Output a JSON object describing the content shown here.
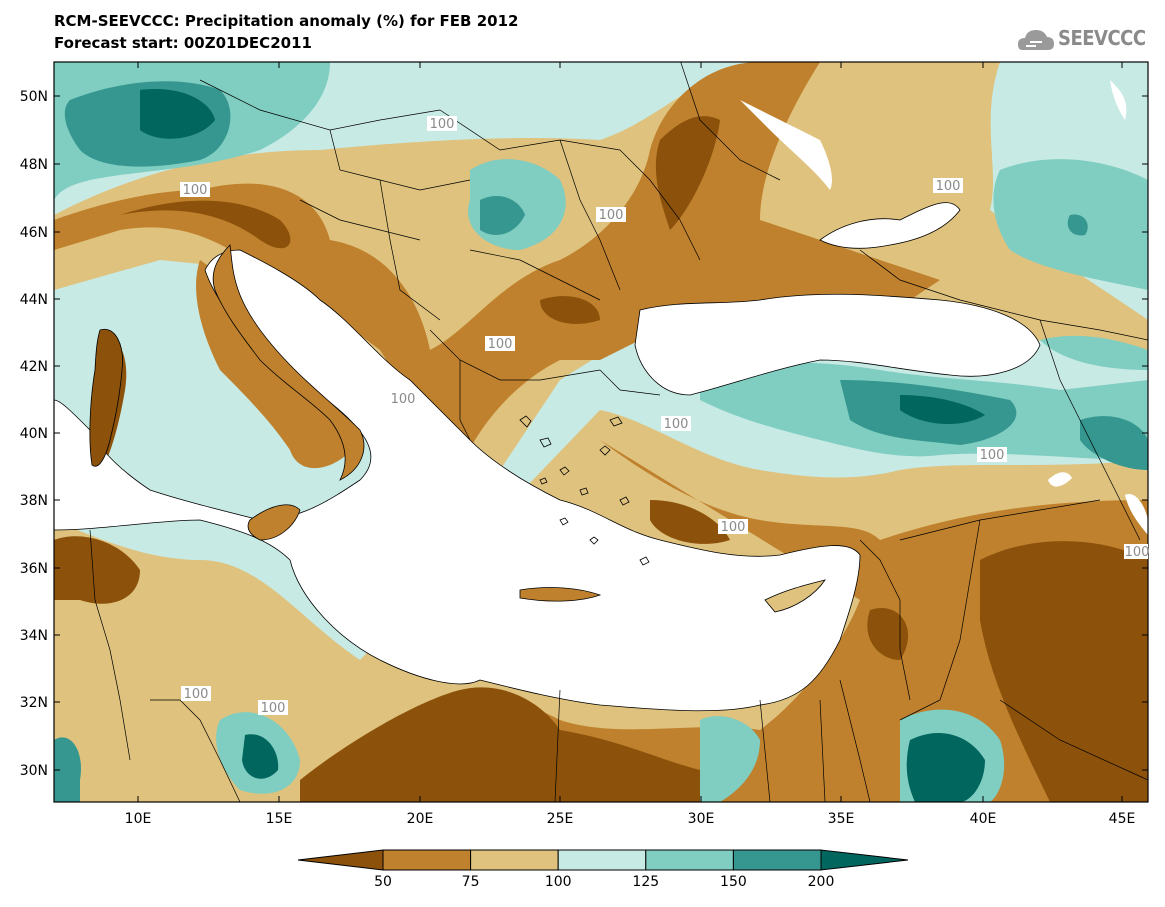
{
  "title": {
    "line1": "RCM-SEEVCCC: Precipitation anomaly (%) for FEB 2012",
    "line2": "Forecast start: 00Z01DEC2011"
  },
  "logo": {
    "text": "SEEVCCC",
    "icon": "cloud-logo-icon"
  },
  "map": {
    "lon_labels": [
      "10E",
      "15E",
      "20E",
      "25E",
      "30E",
      "35E",
      "40E",
      "45E"
    ],
    "lat_labels": [
      "50N",
      "48N",
      "46N",
      "44N",
      "42N",
      "40N",
      "38N",
      "36N",
      "34N",
      "32N",
      "30N"
    ],
    "contour_labels": [
      "100",
      "100",
      "100",
      "100",
      "100",
      "100",
      "100",
      "100",
      "100",
      "100",
      "100",
      "100"
    ]
  },
  "colorbar": {
    "labels": [
      "50",
      "75",
      "100",
      "125",
      "150",
      "200"
    ],
    "colors": {
      "lt50": "#8c510a",
      "50-75": "#bf812d",
      "75-100": "#dfc27d",
      "100-125": "#c7eae5",
      "125-150": "#80cdc1",
      "150-200": "#35978f",
      "gt200": "#01665e"
    }
  }
}
